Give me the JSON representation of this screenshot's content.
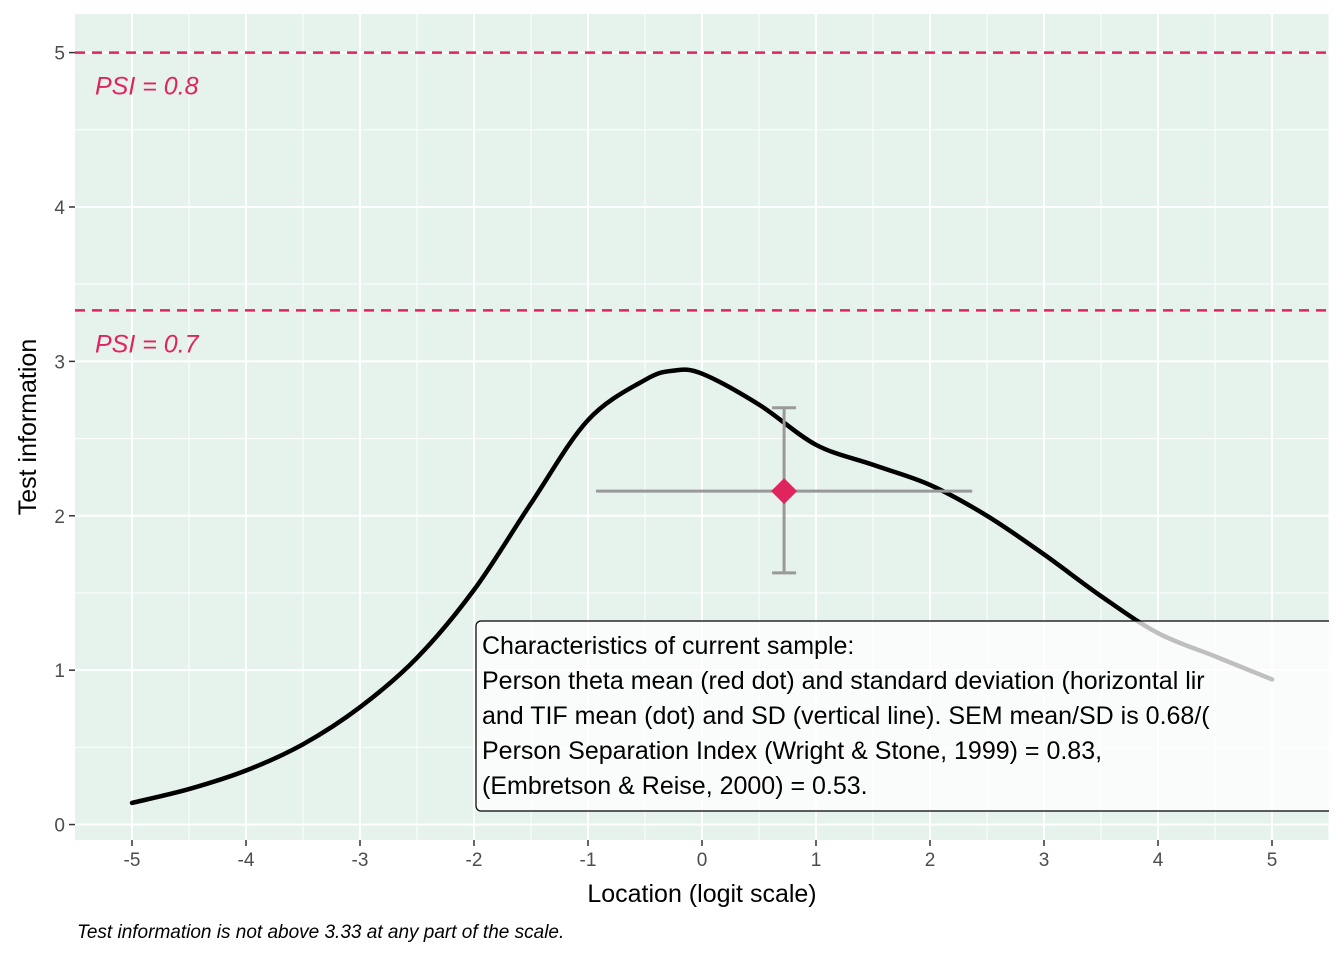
{
  "chart_data": {
    "type": "line",
    "xlabel": "Location (logit scale)",
    "ylabel": "Test information",
    "xlim": [
      -5.5,
      5.5
    ],
    "ylim": [
      -0.1,
      5.25
    ],
    "x_ticks": [
      "-5",
      "-4",
      "-3",
      "-2",
      "-1",
      "0",
      "1",
      "2",
      "3",
      "4",
      "5"
    ],
    "y_ticks": [
      "0",
      "1",
      "2",
      "3",
      "4",
      "5"
    ],
    "grid": true,
    "panel_background": "#e6f2ec",
    "series": [
      {
        "color": "#000000",
        "x": [
          -5,
          -4.5,
          -4,
          -3.5,
          -3,
          -2.5,
          -2,
          -1.5,
          -1,
          -0.5,
          -0.25,
          0,
          0.5,
          1,
          1.5,
          2,
          2.5,
          3,
          3.5,
          4,
          4.5,
          5
        ],
        "y": [
          0.14,
          0.23,
          0.35,
          0.52,
          0.76,
          1.08,
          1.52,
          2.08,
          2.62,
          2.88,
          2.94,
          2.92,
          2.72,
          2.46,
          2.33,
          2.2,
          2.0,
          1.75,
          1.48,
          1.24,
          1.09,
          0.94
        ]
      }
    ],
    "reference_lines": [
      {
        "y": 5.0,
        "label": "PSI = 0.8",
        "color": "#e0245e",
        "style": "dashed"
      },
      {
        "y": 3.33,
        "label": "PSI = 0.7",
        "color": "#e0245e",
        "style": "dashed"
      }
    ],
    "sample_point": {
      "x": 0.72,
      "y": 2.16,
      "x_range": [
        -0.93,
        2.37
      ],
      "y_range": [
        1.63,
        2.7
      ],
      "point_color": "#e0245e",
      "bar_color": "#999999"
    },
    "annotation": [
      "Characteristics of current sample:",
      "Person theta mean (red dot) and standard deviation (horizontal lir",
      "and TIF mean (dot) and SD (vertical line). SEM mean/SD is 0.68/(",
      "Person Separation Index (Wright & Stone, 1999) = 0.83,",
      "(Embretson & Reise, 2000) = 0.53."
    ]
  },
  "caption": "Test information is not above 3.33 at any part of the scale."
}
